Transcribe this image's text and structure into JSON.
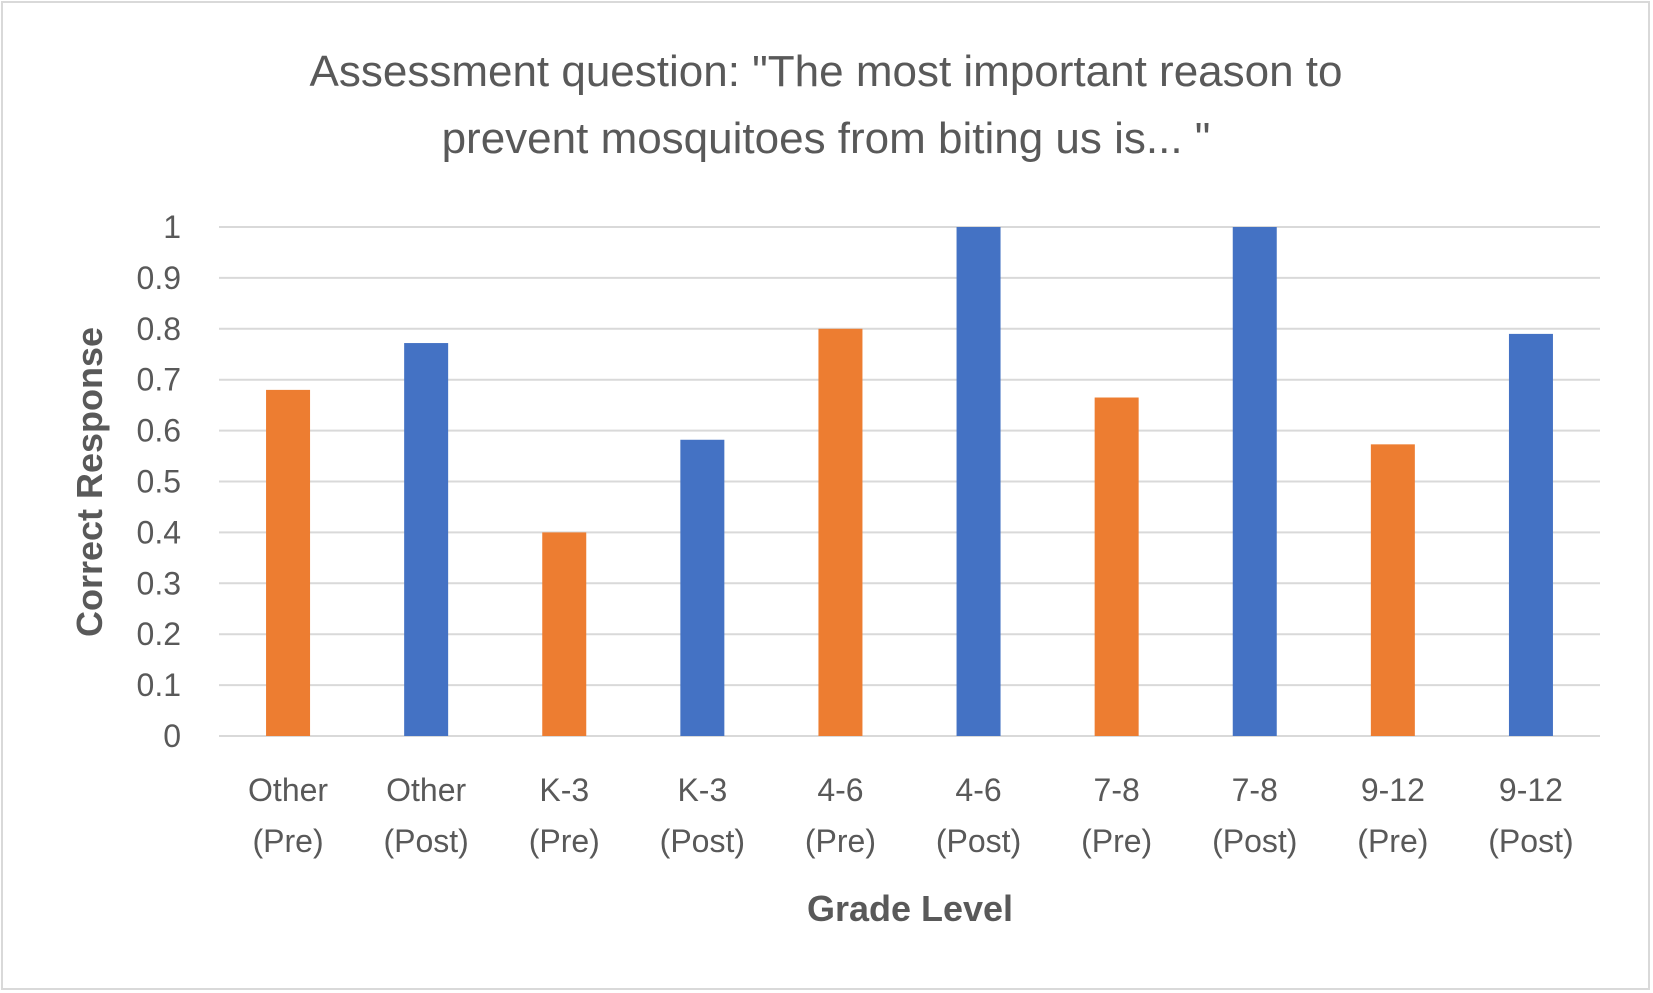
{
  "chart_data": {
    "type": "bar",
    "title_lines": [
      "Assessment question: \"The most important reason to",
      "prevent mosquitoes from biting us is... \""
    ],
    "xlabel": "Grade Level",
    "ylabel": "Correct Response",
    "ylim": [
      0,
      1
    ],
    "yticks": [
      "0",
      "0.1",
      "0.2",
      "0.3",
      "0.4",
      "0.5",
      "0.6",
      "0.7",
      "0.8",
      "0.9",
      "1"
    ],
    "grid": true,
    "categories": [
      [
        "Other",
        "(Pre)"
      ],
      [
        "Other",
        "(Post)"
      ],
      [
        "K-3",
        "(Pre)"
      ],
      [
        "K-3",
        "(Post)"
      ],
      [
        "4-6",
        "(Pre)"
      ],
      [
        "4-6",
        "(Post)"
      ],
      [
        "7-8",
        "(Pre)"
      ],
      [
        "7-8",
        "(Post)"
      ],
      [
        "9-12",
        "(Pre)"
      ],
      [
        "9-12",
        "(Post)"
      ]
    ],
    "values": [
      0.68,
      0.772,
      0.4,
      0.582,
      0.8,
      1.0,
      0.665,
      1.0,
      0.573,
      0.79
    ],
    "bar_colors": [
      "#ED7D31",
      "#4472C4",
      "#ED7D31",
      "#4472C4",
      "#ED7D31",
      "#4472C4",
      "#ED7D31",
      "#4472C4",
      "#ED7D31",
      "#4472C4"
    ]
  }
}
